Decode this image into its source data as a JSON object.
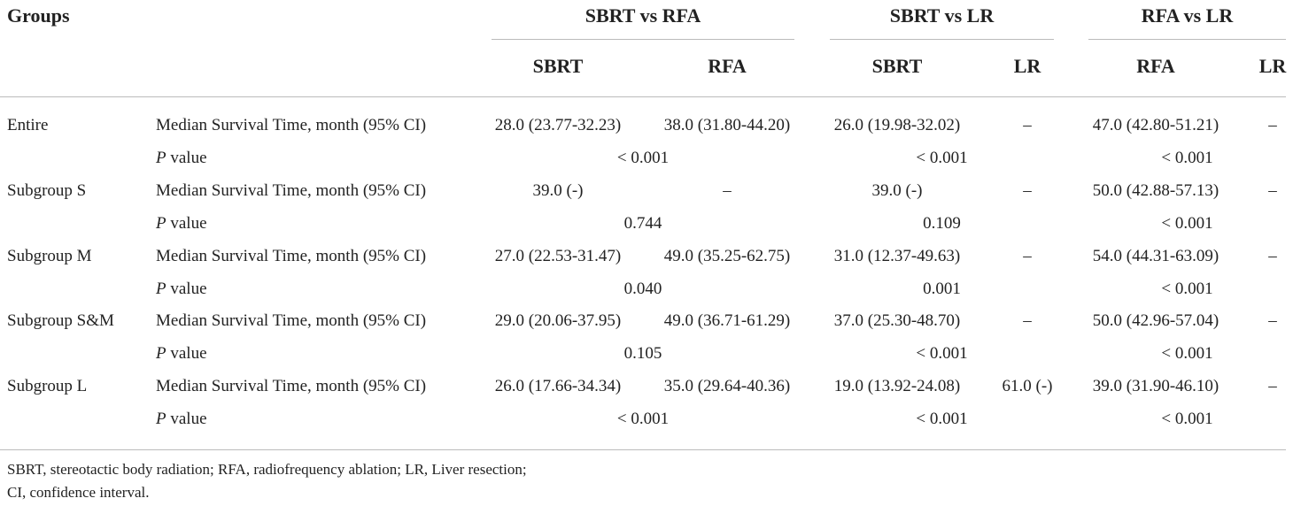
{
  "header": {
    "groups_label": "Groups",
    "comparisons": [
      {
        "title": "SBRT vs RFA",
        "columns": [
          "SBRT",
          "RFA"
        ]
      },
      {
        "title": "SBRT vs LR",
        "columns": [
          "SBRT",
          "LR"
        ]
      },
      {
        "title": "RFA vs LR",
        "columns": [
          "RFA",
          "LR"
        ]
      }
    ]
  },
  "rows": [
    {
      "group": "Entire",
      "median_label": "Median Survival Time, month (95% CI)",
      "median": [
        "28.0 (23.77-32.23)",
        "38.0 (31.80-44.20)",
        "26.0 (19.98-32.02)",
        "–",
        "47.0 (42.80-51.21)",
        "–"
      ],
      "p_label": "P value",
      "p": [
        "< 0.001",
        "< 0.001",
        "< 0.001"
      ]
    },
    {
      "group": "Subgroup S",
      "median_label": "Median Survival Time, month (95% CI)",
      "median": [
        "39.0 (-)",
        "–",
        "39.0 (-)",
        "–",
        "50.0 (42.88-57.13)",
        "–"
      ],
      "p_label": "P value",
      "p": [
        "0.744",
        "0.109",
        "< 0.001"
      ]
    },
    {
      "group": "Subgroup M",
      "median_label": "Median Survival Time, month (95% CI)",
      "median": [
        "27.0 (22.53-31.47)",
        "49.0 (35.25-62.75)",
        "31.0 (12.37-49.63)",
        "–",
        "54.0 (44.31-63.09)",
        "–"
      ],
      "p_label": "P value",
      "p": [
        "0.040",
        "0.001",
        "< 0.001"
      ]
    },
    {
      "group": "Subgroup S&M",
      "median_label": "Median Survival Time, month (95% CI)",
      "median": [
        "29.0 (20.06-37.95)",
        "49.0 (36.71-61.29)",
        "37.0 (25.30-48.70)",
        "–",
        "50.0 (42.96-57.04)",
        "–"
      ],
      "p_label": "P value",
      "p": [
        "0.105",
        "< 0.001",
        "< 0.001"
      ]
    },
    {
      "group": "Subgroup L",
      "median_label": "Median Survival Time, month (95% CI)",
      "median": [
        "26.0 (17.66-34.34)",
        "35.0 (29.64-40.36)",
        "19.0 (13.92-24.08)",
        "61.0 (-)",
        "39.0 (31.90-46.10)",
        "–"
      ],
      "p_label": "P value",
      "p": [
        "< 0.001",
        "< 0.001",
        "< 0.001"
      ]
    }
  ],
  "footnote": [
    "SBRT, stereotactic body radiation; RFA, radiofrequency ablation; LR, Liver resection;",
    "CI, confidence interval."
  ]
}
